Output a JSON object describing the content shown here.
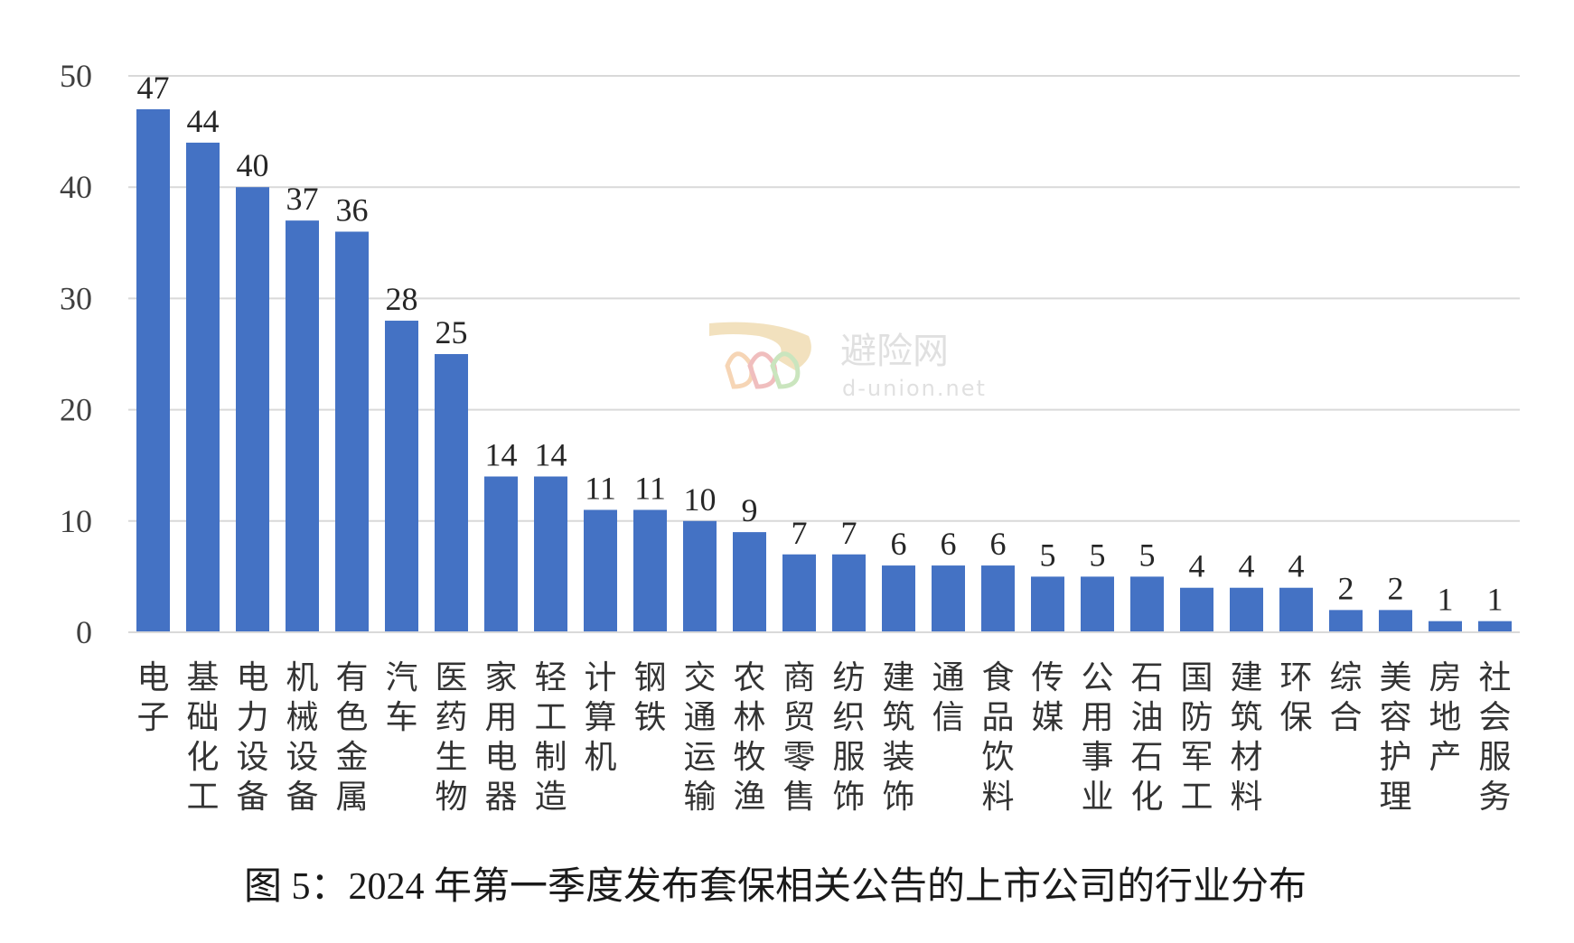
{
  "chart_data": {
    "type": "bar",
    "categories": [
      "电子",
      "基础化工",
      "电力设备",
      "机械设备",
      "有色金属",
      "汽车",
      "医药生物",
      "家用电器",
      "轻工制造",
      "计算机",
      "钢铁",
      "交通运输",
      "农林牧渔",
      "商贸零售",
      "纺织服饰",
      "建筑装饰",
      "通信",
      "食品饮料",
      "传媒",
      "公用事业",
      "石油石化",
      "国防军工",
      "建筑材料",
      "环保",
      "综合",
      "美容护理",
      "房地产",
      "社会服务"
    ],
    "values": [
      47,
      44,
      40,
      37,
      36,
      28,
      25,
      14,
      14,
      11,
      11,
      10,
      9,
      7,
      7,
      6,
      6,
      6,
      5,
      5,
      5,
      4,
      4,
      4,
      2,
      2,
      1,
      1
    ],
    "ylim": [
      0,
      50
    ],
    "yticks": [
      "0",
      "10",
      "20",
      "30",
      "40",
      "50"
    ],
    "grid": true,
    "bar_color": "#4472c4",
    "grid_color": "#d9d9d9",
    "caption": "图 5：2024 年第一季度发布套保相关公告的上市公司的行业分布"
  },
  "watermark": {
    "name": "避险网",
    "domain": "d-union.net"
  }
}
